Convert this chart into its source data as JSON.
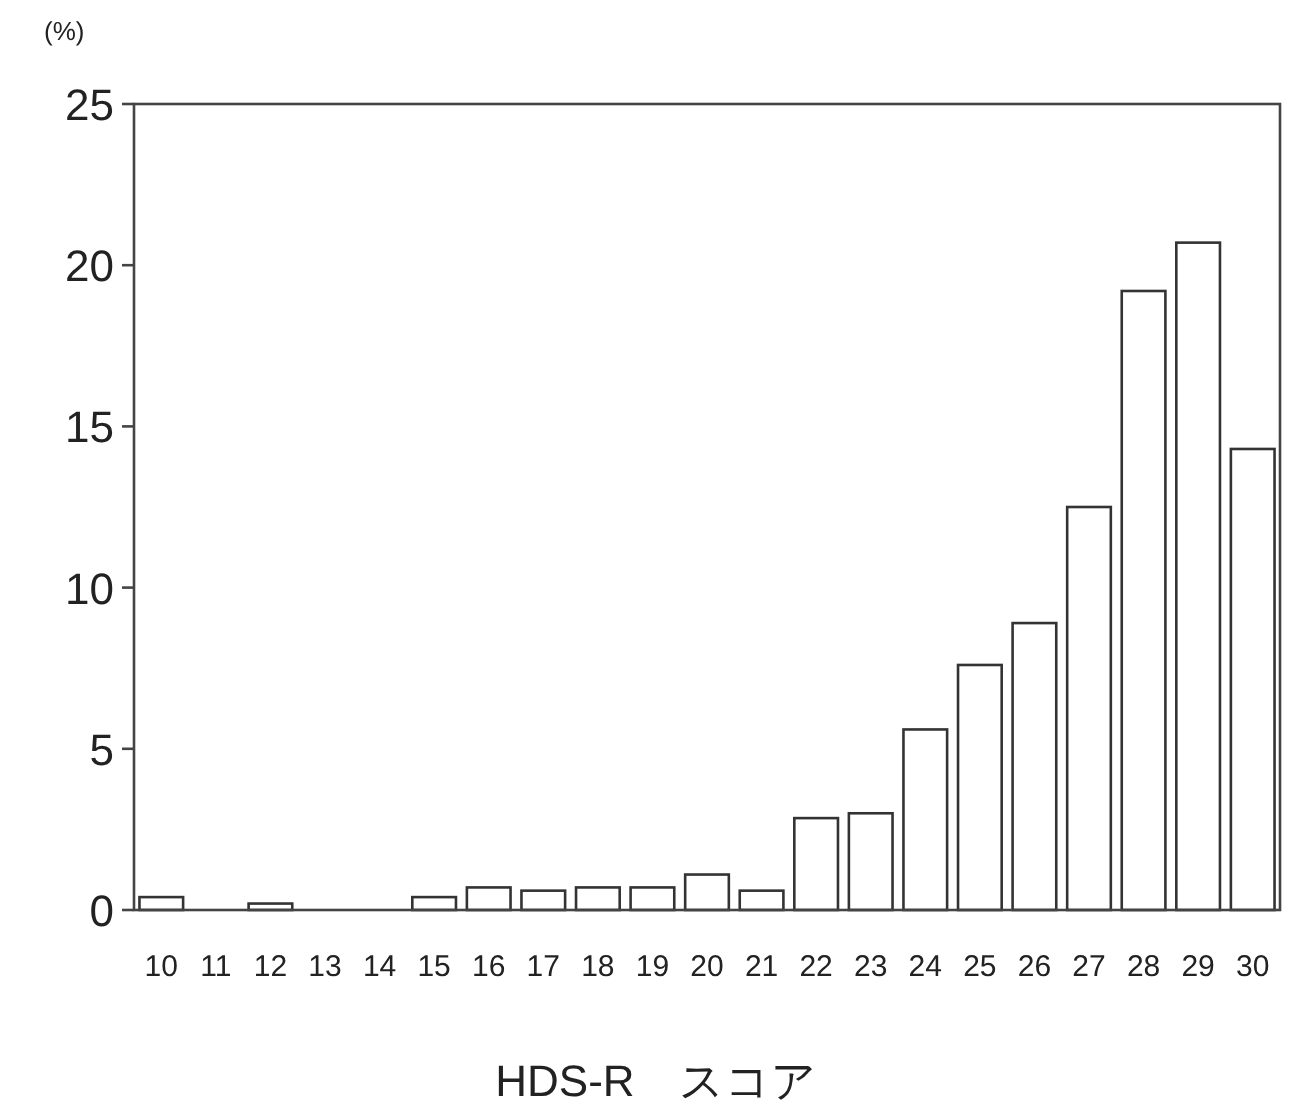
{
  "chart_data": {
    "type": "bar",
    "ylabel": "(%)",
    "xlabel": "HDS-R　スコア",
    "categories": [
      "10",
      "11",
      "12",
      "13",
      "14",
      "15",
      "16",
      "17",
      "18",
      "19",
      "20",
      "21",
      "22",
      "23",
      "24",
      "25",
      "26",
      "27",
      "28",
      "29",
      "30"
    ],
    "values": [
      0.4,
      0,
      0.2,
      0,
      0,
      0.4,
      0.7,
      0.6,
      0.7,
      0.7,
      1.1,
      0.6,
      2.85,
      3.0,
      5.6,
      7.6,
      8.9,
      12.5,
      19.2,
      20.7,
      14.3
    ],
    "color": "#ffffff",
    "ylim": [
      0,
      25
    ],
    "yticks": [
      0,
      5,
      10,
      15,
      20,
      25
    ],
    "grid": false
  }
}
